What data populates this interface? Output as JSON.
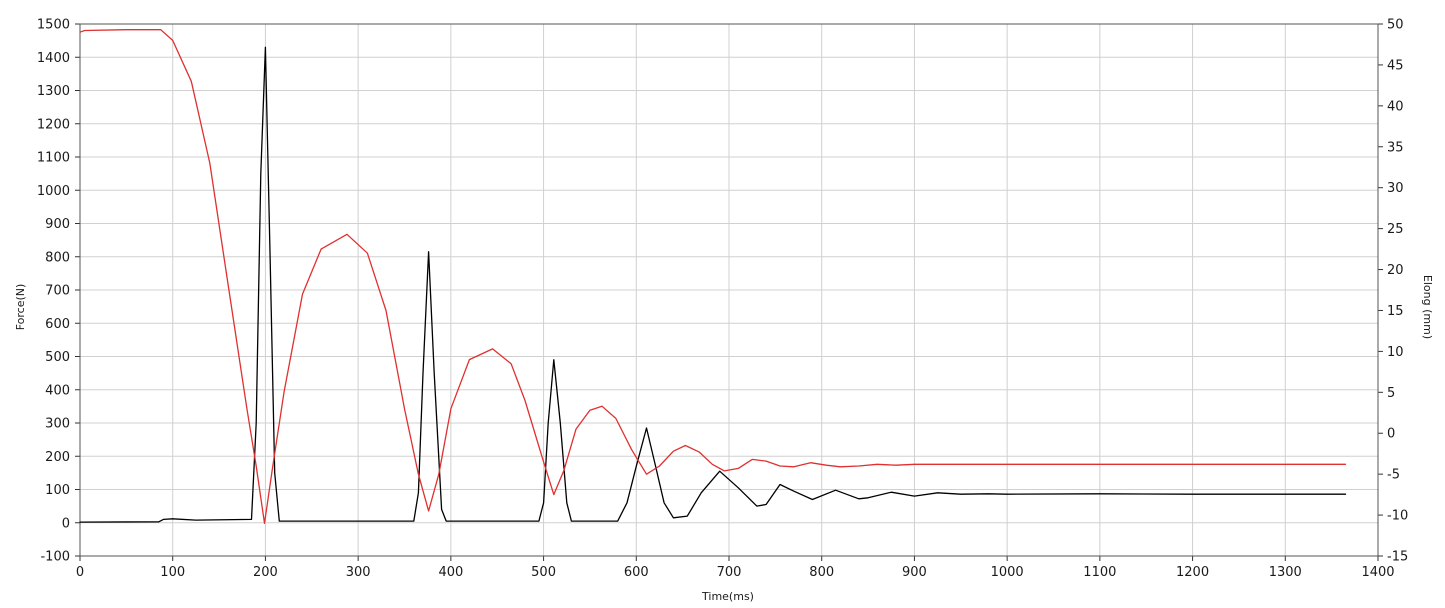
{
  "chart_data": {
    "type": "line",
    "title": "",
    "xlabel": "Time(ms)",
    "ylabel": "Force(N)",
    "y2label": "Elong (mm)",
    "xlim": [
      0,
      1400
    ],
    "ylim": [
      -100,
      1500
    ],
    "y2lim": [
      -15,
      50
    ],
    "x_ticks": [
      0,
      100,
      200,
      300,
      400,
      500,
      600,
      700,
      800,
      900,
      1000,
      1100,
      1200,
      1300,
      1400
    ],
    "y_ticks": [
      -100,
      0,
      100,
      200,
      300,
      400,
      500,
      600,
      700,
      800,
      900,
      1000,
      1100,
      1200,
      1300,
      1400,
      1500
    ],
    "y2_ticks": [
      -15,
      -10,
      -5,
      0,
      5,
      10,
      15,
      20,
      25,
      30,
      35,
      40,
      45,
      50
    ],
    "grid": true,
    "colors": {
      "force": "#000000",
      "elongation": "#e03030",
      "grid": "#d0d0d0"
    },
    "series": [
      {
        "key": "force",
        "axis": "left",
        "x": [
          0,
          85,
          90,
          100,
          125,
          185,
          190,
          195,
          200,
          205,
          210,
          215,
          360,
          365,
          370,
          376,
          382,
          390,
          395,
          495,
          500,
          505,
          511,
          518,
          525,
          530,
          580,
          590,
          600,
          611,
          620,
          630,
          640,
          655,
          670,
          690,
          710,
          730,
          740,
          755,
          770,
          790,
          815,
          840,
          850,
          875,
          900,
          925,
          950,
          980,
          1000,
          1100,
          1200,
          1300,
          1365
        ],
        "values": [
          2,
          3,
          10,
          12,
          8,
          10,
          300,
          1050,
          1430,
          800,
          150,
          5,
          5,
          90,
          450,
          815,
          450,
          40,
          5,
          5,
          60,
          300,
          490,
          300,
          60,
          5,
          5,
          60,
          170,
          285,
          180,
          60,
          15,
          20,
          90,
          155,
          105,
          50,
          55,
          115,
          95,
          70,
          98,
          72,
          75,
          92,
          80,
          90,
          86,
          87,
          86,
          87,
          86,
          86,
          86
        ]
      },
      {
        "key": "elongation",
        "axis": "right",
        "x": [
          0,
          5,
          50,
          87,
          100,
          120,
          140,
          160,
          180,
          190,
          199,
          208,
          220,
          240,
          260,
          288,
          310,
          330,
          350,
          365,
          376,
          387,
          400,
          420,
          445,
          465,
          480,
          500,
          511,
          522,
          535,
          550,
          563,
          578,
          595,
          611,
          625,
          640,
          653,
          668,
          682,
          695,
          710,
          725,
          740,
          755,
          770,
          788,
          805,
          820,
          840,
          860,
          880,
          900,
          1000,
          1100,
          1200,
          1300,
          1365
        ],
        "values": [
          49.0,
          49.2,
          49.3,
          49.3,
          48.0,
          43.0,
          33.0,
          18.0,
          3.0,
          -4.0,
          -11.0,
          -4.0,
          5.0,
          17.0,
          22.5,
          24.3,
          22.0,
          15.0,
          3.0,
          -5.0,
          -9.5,
          -5.0,
          3.0,
          9.0,
          10.3,
          8.5,
          4.0,
          -3.5,
          -7.5,
          -4.5,
          0.5,
          2.8,
          3.3,
          1.8,
          -2.0,
          -5.0,
          -4.0,
          -2.2,
          -1.5,
          -2.3,
          -3.8,
          -4.6,
          -4.3,
          -3.2,
          -3.4,
          -4.0,
          -4.1,
          -3.6,
          -3.9,
          -4.1,
          -4.0,
          -3.8,
          -3.9,
          -3.8,
          -3.8,
          -3.8,
          -3.8,
          -3.8,
          -3.8
        ]
      }
    ]
  }
}
